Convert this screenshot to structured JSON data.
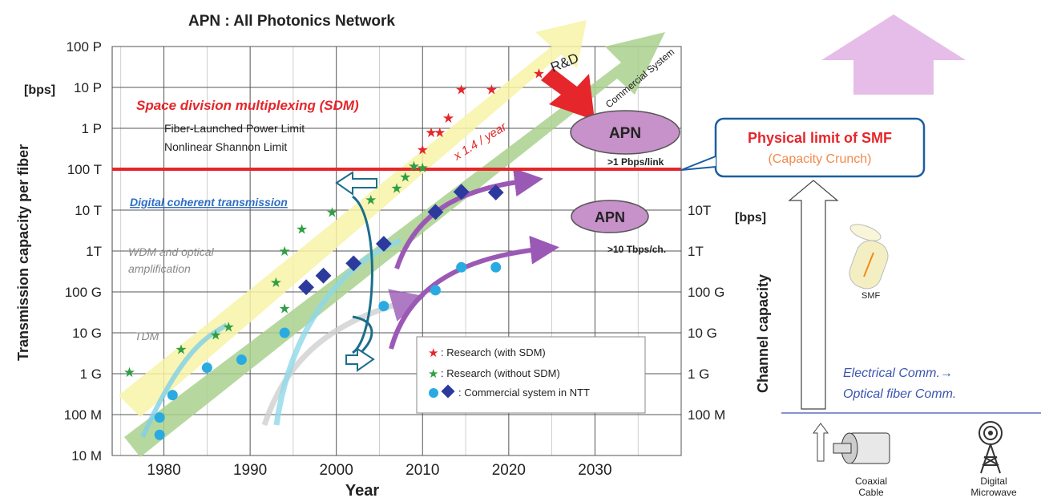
{
  "chart_data": {
    "type": "scatter",
    "title": "APN : All Photonics Network",
    "xlabel": "Year",
    "ylabel": "Transmission capacity per fiber",
    "y2label": "Channel capacity",
    "yunit": "[bps]",
    "y2unit": "[bps]",
    "xlim": [
      1974,
      2040
    ],
    "ylim_log10": [
      7,
      17
    ],
    "x_ticks": [
      "1980",
      "1990",
      "2000",
      "2010",
      "2020",
      "2030"
    ],
    "y_ticks": [
      "10 M",
      "100 M",
      "1 G",
      "10 G",
      "100 G",
      "1T",
      "10 T",
      "100 T",
      "1 P",
      "10 P",
      "100 P"
    ],
    "y2_ticks": [
      "100 M",
      "1 G",
      "10 G",
      "100 G",
      "1T",
      "10T"
    ],
    "grid": true,
    "series": [
      {
        "name": "Research (with SDM)",
        "marker": "star",
        "color": "#e5262a",
        "points": [
          [
            2010,
            300000000000000.0
          ],
          [
            2011,
            800000000000000.0
          ],
          [
            2012,
            800000000000000.0
          ],
          [
            2013,
            1800000000000000.0
          ],
          [
            2014.5,
            9000000000000000.0
          ],
          [
            2018,
            9000000000000000.0
          ],
          [
            2023.5,
            2.2e+16
          ]
        ]
      },
      {
        "name": "Research (without SDM)",
        "marker": "star",
        "color": "#2f9e44",
        "points": [
          [
            1976,
            1100000000.0
          ],
          [
            1982,
            4000000000.0
          ],
          [
            1986,
            9000000000.0
          ],
          [
            1987.5,
            14000000000.0
          ],
          [
            1993,
            170000000000.0
          ],
          [
            1994,
            40000000000.0
          ],
          [
            1994,
            1000000000000.0
          ],
          [
            1996,
            3500000000000.0
          ],
          [
            1999.5,
            9000000000000.0
          ],
          [
            2004,
            18000000000000.0
          ],
          [
            2007,
            35000000000000.0
          ],
          [
            2008,
            65000000000000.0
          ],
          [
            2009,
            120000000000000.0
          ],
          [
            2010,
            110000000000000.0
          ]
        ]
      },
      {
        "name": "Commercial system in NTT (circle)",
        "marker": "circle",
        "color": "#29abe2",
        "points": [
          [
            1979.5,
            32000000.0
          ],
          [
            1979.5,
            85000000.0
          ],
          [
            1981,
            300000000.0
          ],
          [
            1985,
            1400000000.0
          ],
          [
            1989,
            2200000000.0
          ],
          [
            1994,
            10000000000.0
          ],
          [
            2005.5,
            45000000000.0
          ],
          [
            2011.5,
            110000000000.0
          ],
          [
            2014.5,
            400000000000.0
          ],
          [
            2018.5,
            400000000000.0
          ]
        ]
      },
      {
        "name": "Commercial system in NTT (diamond)",
        "marker": "diamond",
        "color": "#2b3a9c",
        "points": [
          [
            1996.5,
            130000000000.0
          ],
          [
            1998.5,
            250000000000.0
          ],
          [
            2002,
            500000000000.0
          ],
          [
            2005.5,
            1500000000000.0
          ],
          [
            2011.5,
            9000000000000.0
          ],
          [
            2014.5,
            28000000000000.0
          ],
          [
            2018.5,
            27000000000000.0
          ]
        ]
      }
    ],
    "reference_lines": [
      {
        "label": "Fiber-Launched Power Limit",
        "label2": "Nonlinear Shannon Limit",
        "value": 100000000000000.0,
        "color": "#e5262a"
      }
    ],
    "trends": [
      "x 1.4 / year",
      "Commercial System",
      "R&D"
    ],
    "annotations": {
      "sdm": "Space division multiplexing (SDM)",
      "coherent": "Digital coherent transmission",
      "wdm1": "WDM  and optical",
      "wdm2": "amplification",
      "tdm": "TDM",
      "apn": "APN",
      "apn_link": ">1 Pbps/link",
      "apn_ch": ">10 Tbps/ch.",
      "limit_title": "Physical limit of SMF",
      "limit_sub": "(Capacity Crunch)",
      "smf": "SMF",
      "elec1": "Electrical Comm.→",
      "elec2": "Optical fiber Comm.",
      "coax1": "Coaxial",
      "coax2": "Cable",
      "micro1": "Digital",
      "micro2": "Microwave"
    },
    "legend": [
      {
        "text": ": Research (with SDM)"
      },
      {
        "text": ": Research (without SDM)"
      },
      {
        "text": ": Commercial system in NTT"
      }
    ],
    "legend_position": "bottom-right"
  }
}
